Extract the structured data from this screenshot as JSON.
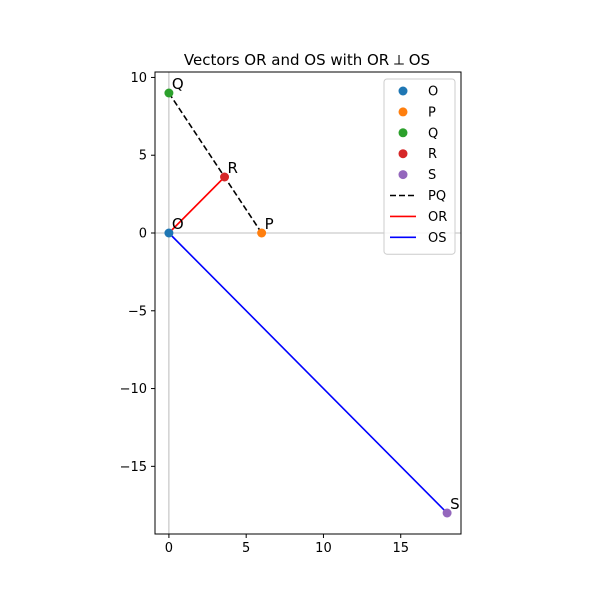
{
  "chart_data": {
    "type": "scatter",
    "title": "Vectors OR and OS with OR ⟂ OS",
    "xlabel": "",
    "ylabel": "",
    "xlim": [
      -0.9,
      18.9
    ],
    "ylim": [
      -19.35,
      10.35
    ],
    "xticks": [
      0,
      5,
      10,
      15
    ],
    "yticks": [
      10,
      5,
      0,
      -5,
      -10,
      -15
    ],
    "xtick_labels": [
      "0",
      "5",
      "10",
      "15"
    ],
    "ytick_labels": [
      "10",
      "5",
      "0",
      "−5",
      "−10",
      "−15"
    ],
    "grid": false,
    "reference_lines": {
      "x": 0,
      "y": 0,
      "color": "#aaaaaa"
    },
    "legend_position": "upper right",
    "points": [
      {
        "name": "O",
        "label": "O",
        "x": 0,
        "y": 0,
        "color": "#1f77b4"
      },
      {
        "name": "P",
        "label": "P",
        "x": 6,
        "y": 0,
        "color": "#ff7f0e"
      },
      {
        "name": "Q",
        "label": "Q",
        "x": 0,
        "y": 9,
        "color": "#2ca02c"
      },
      {
        "name": "R",
        "label": "R",
        "x": 3.6,
        "y": 3.6,
        "color": "#d62728"
      },
      {
        "name": "S",
        "label": "S",
        "x": 18,
        "y": -18,
        "color": "#9467bd"
      }
    ],
    "lines": [
      {
        "name": "PQ",
        "x": [
          6,
          0
        ],
        "y": [
          0,
          9
        ],
        "color": "#000000",
        "style": "dashed"
      },
      {
        "name": "OR",
        "x": [
          0,
          3.6
        ],
        "y": [
          0,
          3.6
        ],
        "color": "#ff0000",
        "style": "solid"
      },
      {
        "name": "OS",
        "x": [
          0,
          18
        ],
        "y": [
          0,
          -18
        ],
        "color": "#0000ff",
        "style": "solid"
      }
    ]
  }
}
